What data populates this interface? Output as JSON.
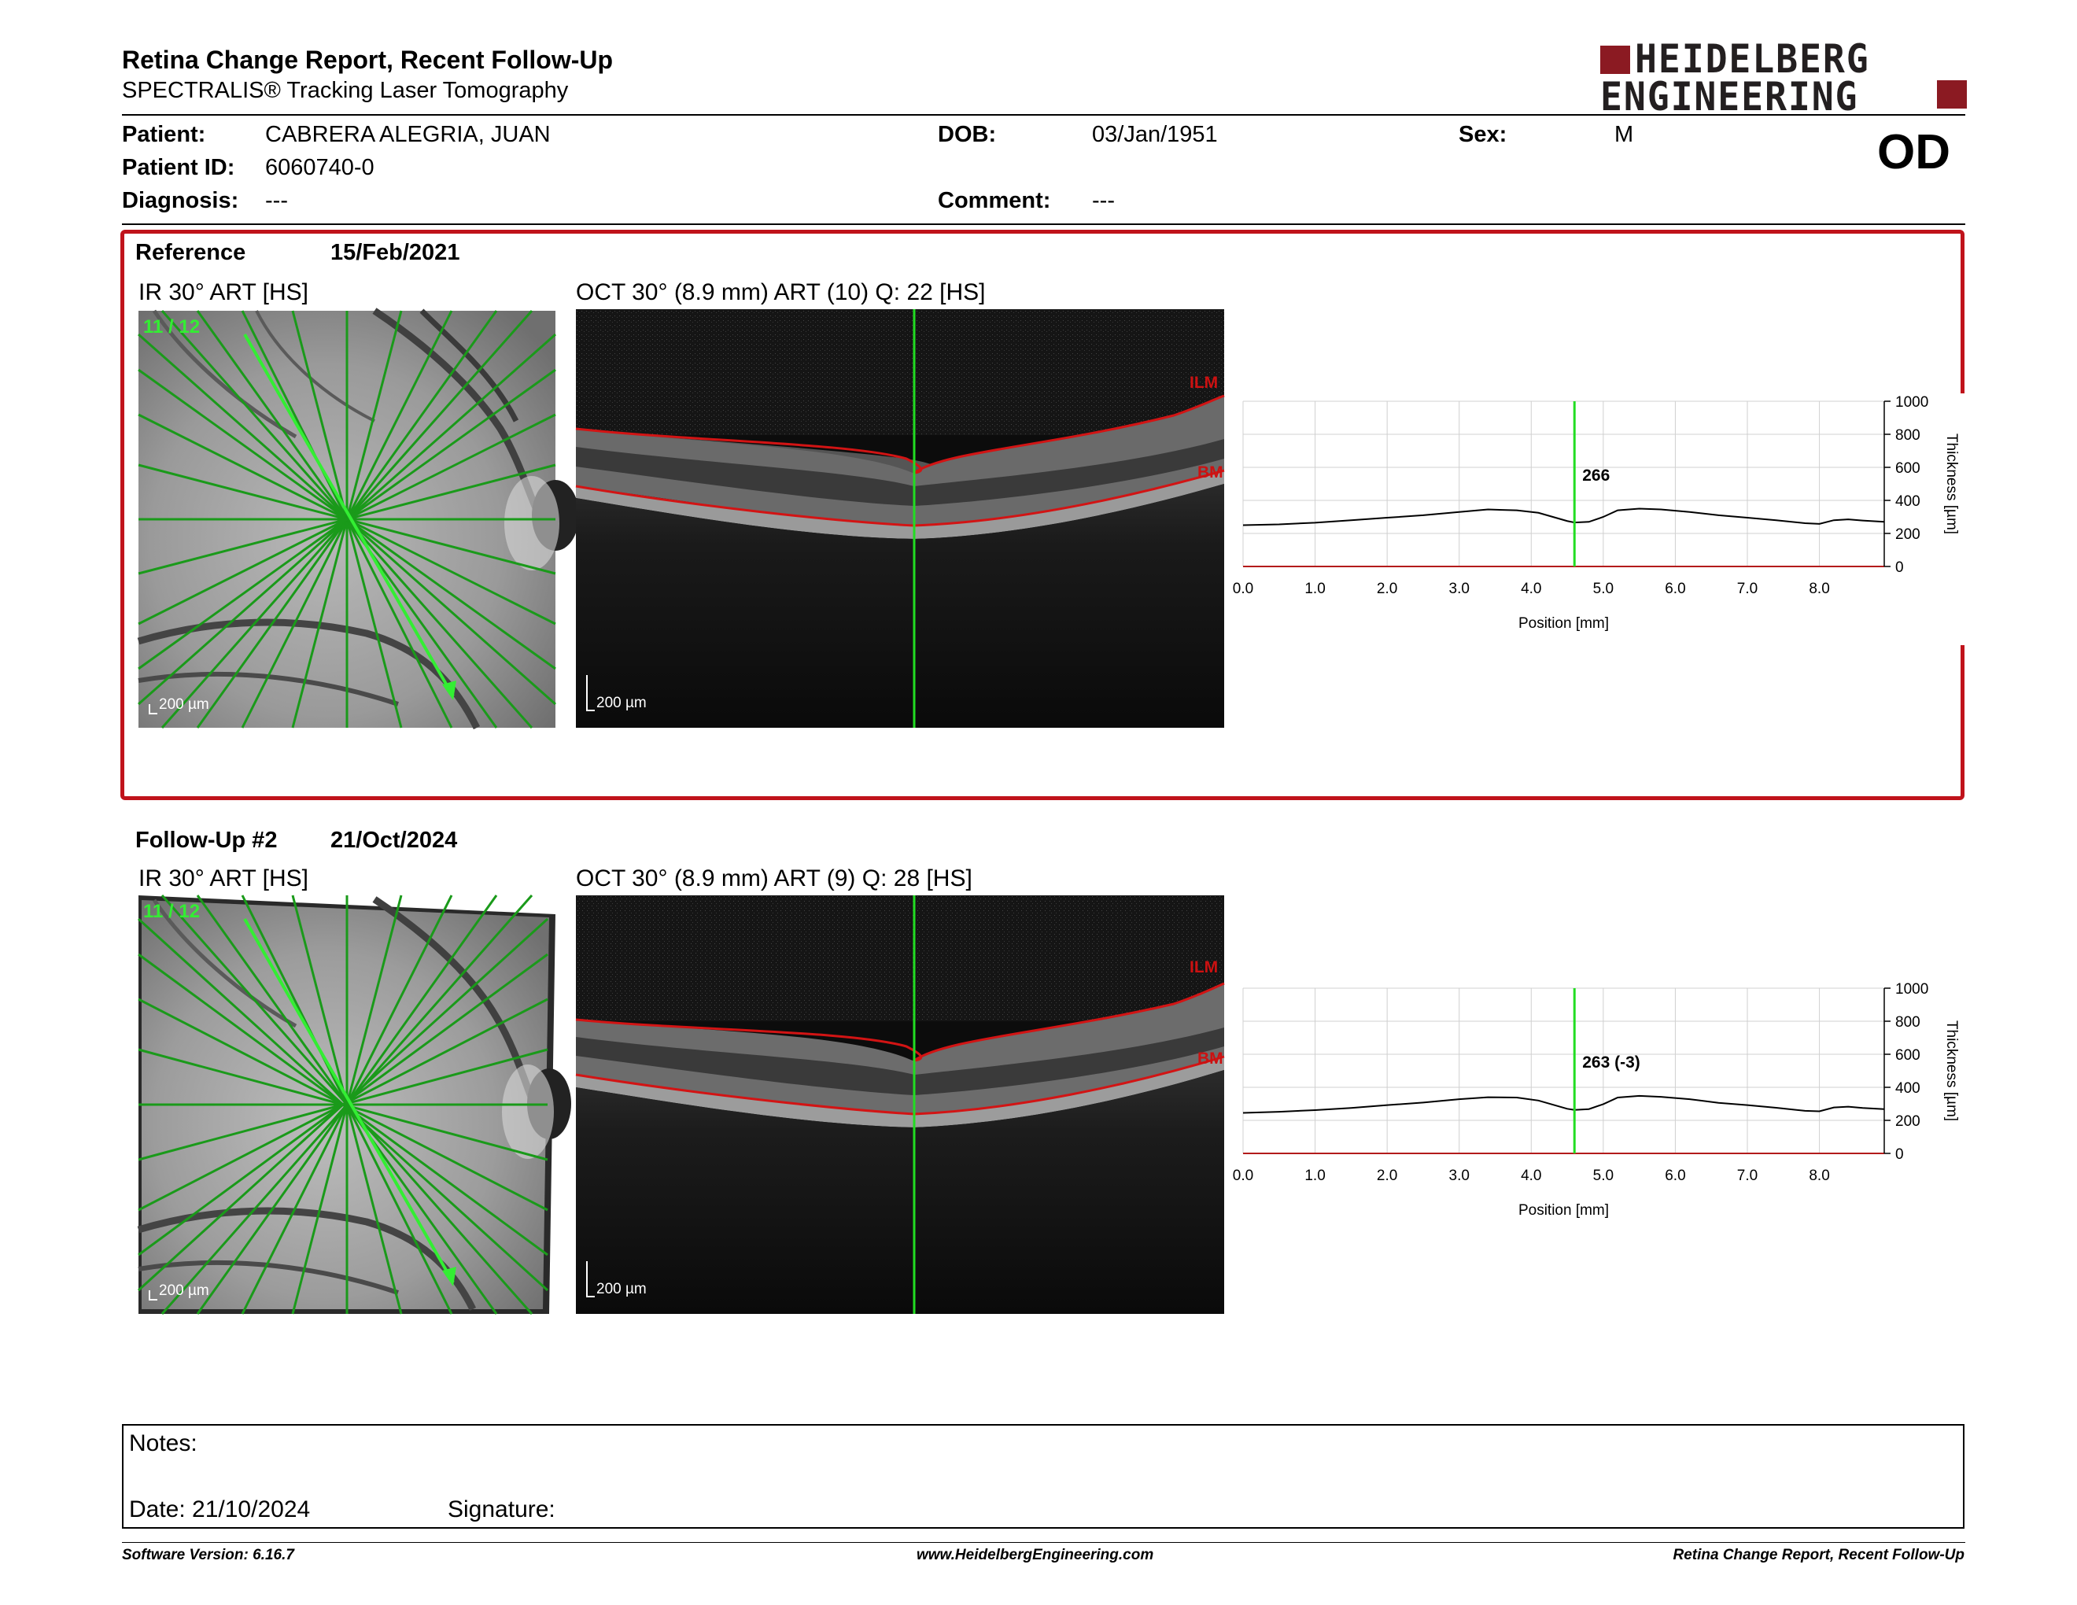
{
  "header": {
    "title": "Retina Change Report, Recent Follow-Up",
    "subtitle": "SPECTRALIS® Tracking Laser Tomography",
    "logo_line1": "HEIDELBERG",
    "logo_line2": "ENGINEERING"
  },
  "patient": {
    "patient_label": "Patient:",
    "patient_value": "CABRERA ALEGRIA, JUAN",
    "id_label": "Patient ID:",
    "id_value": "6060740-0",
    "diagnosis_label": "Diagnosis:",
    "diagnosis_value": "---",
    "dob_label": "DOB:",
    "dob_value": "03/Jan/1951",
    "comment_label": "Comment:",
    "comment_value": "---",
    "sex_label": "Sex:",
    "sex_value": "M",
    "eye": "OD"
  },
  "reference": {
    "label": "Reference",
    "date": "15/Feb/2021",
    "ir_caption": "IR 30° ART [HS]",
    "oct_caption": "OCT 30° (8.9 mm) ART (10) Q: 22 [HS]",
    "scan_index": "11 / 12",
    "ir_scale": "200 µm",
    "oct_scale": "200 µm",
    "ilm_label": "ILM",
    "bm_label": "BM"
  },
  "followup": {
    "label": "Follow-Up #2",
    "date": "21/Oct/2024",
    "ir_caption": "IR 30° ART [HS]",
    "oct_caption": "OCT 30° (8.9 mm) ART (9) Q: 28 [HS]",
    "scan_index": "11 / 12",
    "ir_scale": "200 µm",
    "oct_scale": "200 µm",
    "ilm_label": "ILM",
    "bm_label": "BM"
  },
  "chart_data": [
    {
      "type": "line",
      "xlabel": "Position [mm]",
      "ylabel": "Thickness [µm]",
      "xlim": [
        0,
        8.9
      ],
      "ylim": [
        0,
        1000
      ],
      "x_ticks": [
        "0.0",
        "1.0",
        "2.0",
        "3.0",
        "4.0",
        "5.0",
        "6.0",
        "7.0",
        "8.0"
      ],
      "y_ticks": [
        "0",
        "200",
        "400",
        "600",
        "800",
        "1000"
      ],
      "grid": true,
      "cursor_x": 4.6,
      "cursor_label": "266",
      "line_color": "#000000",
      "cursor_color": "#22dd22",
      "series": [
        {
          "x": [
            0.0,
            0.5,
            1.0,
            1.5,
            2.0,
            2.5,
            3.0,
            3.4,
            3.8,
            4.1,
            4.3,
            4.5,
            4.6,
            4.8,
            5.0,
            5.2,
            5.5,
            5.8,
            6.2,
            6.6,
            7.0,
            7.4,
            7.8,
            8.0,
            8.2,
            8.4,
            8.6,
            8.9
          ],
          "y": [
            250,
            255,
            265,
            280,
            295,
            310,
            330,
            345,
            340,
            325,
            300,
            275,
            266,
            270,
            300,
            340,
            350,
            345,
            330,
            310,
            295,
            280,
            262,
            258,
            280,
            285,
            278,
            270
          ]
        }
      ]
    },
    {
      "type": "line",
      "xlabel": "Position [mm]",
      "ylabel": "Thickness [µm]",
      "xlim": [
        0,
        8.9
      ],
      "ylim": [
        0,
        1000
      ],
      "x_ticks": [
        "0.0",
        "1.0",
        "2.0",
        "3.0",
        "4.0",
        "5.0",
        "6.0",
        "7.0",
        "8.0"
      ],
      "y_ticks": [
        "0",
        "200",
        "400",
        "600",
        "800",
        "1000"
      ],
      "grid": true,
      "cursor_x": 4.6,
      "cursor_label": "263 (-3)",
      "line_color": "#000000",
      "cursor_color": "#22dd22",
      "series": [
        {
          "x": [
            0.0,
            0.5,
            1.0,
            1.5,
            2.0,
            2.5,
            3.0,
            3.4,
            3.8,
            4.1,
            4.3,
            4.5,
            4.6,
            4.8,
            5.0,
            5.2,
            5.5,
            5.8,
            6.2,
            6.6,
            7.0,
            7.4,
            7.8,
            8.0,
            8.2,
            8.4,
            8.6,
            8.9
          ],
          "y": [
            245,
            252,
            262,
            275,
            292,
            308,
            328,
            340,
            338,
            320,
            295,
            270,
            263,
            268,
            298,
            338,
            348,
            342,
            328,
            306,
            292,
            276,
            258,
            255,
            278,
            283,
            275,
            268
          ]
        }
      ]
    }
  ],
  "notes": {
    "notes_label": "Notes:",
    "date_label": "Date: 21/10/2024",
    "signature_label": "Signature:"
  },
  "footer": {
    "left": "Software Version: 6.16.7",
    "center": "www.HeidelbergEngineering.com",
    "right": "Retina Change Report, Recent Follow-Up"
  },
  "colors": {
    "brand_red": "#8b1a22",
    "frame_red": "#c0131b",
    "scan_green": "#22dd22",
    "layer_red": "#cc1111"
  }
}
